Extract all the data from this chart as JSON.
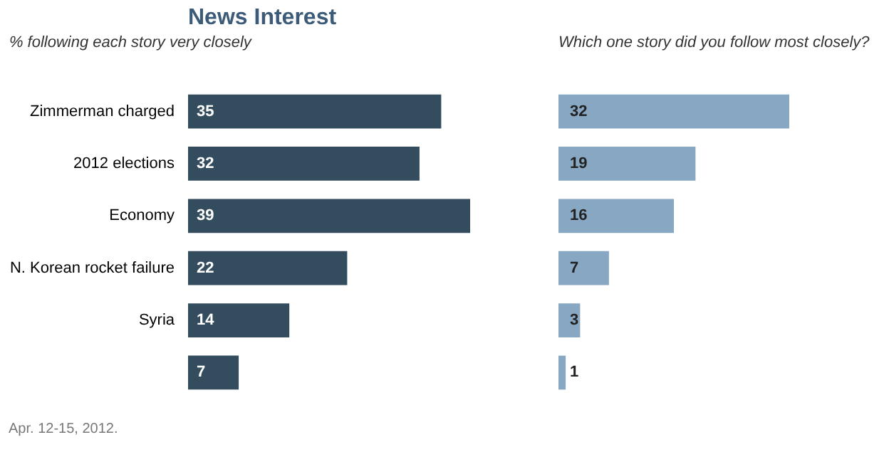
{
  "chart_data": [
    {
      "type": "bar",
      "orientation": "horizontal",
      "title": "News Interest",
      "subtitle": "% following each story very closely",
      "categories": [
        "Zimmerman charged",
        "2012 elections",
        "Economy",
        "N. Korean rocket failure",
        "Syria",
        null
      ],
      "series": [
        {
          "color": "#334d5f",
          "values": [
            35,
            32,
            39,
            22,
            14,
            7
          ]
        }
      ],
      "data_labels": true,
      "annotations": [
        "Apr. 12-15, 2012."
      ]
    },
    {
      "type": "bar",
      "orientation": "horizontal",
      "subtitle": "Which one story did you follow most closely?",
      "categories": [
        null,
        null,
        null,
        null,
        null,
        null
      ],
      "series": [
        {
          "color": "#87a7c3",
          "values": [
            32,
            19,
            16,
            7,
            3,
            1
          ]
        }
      ],
      "data_labels": true
    }
  ]
}
